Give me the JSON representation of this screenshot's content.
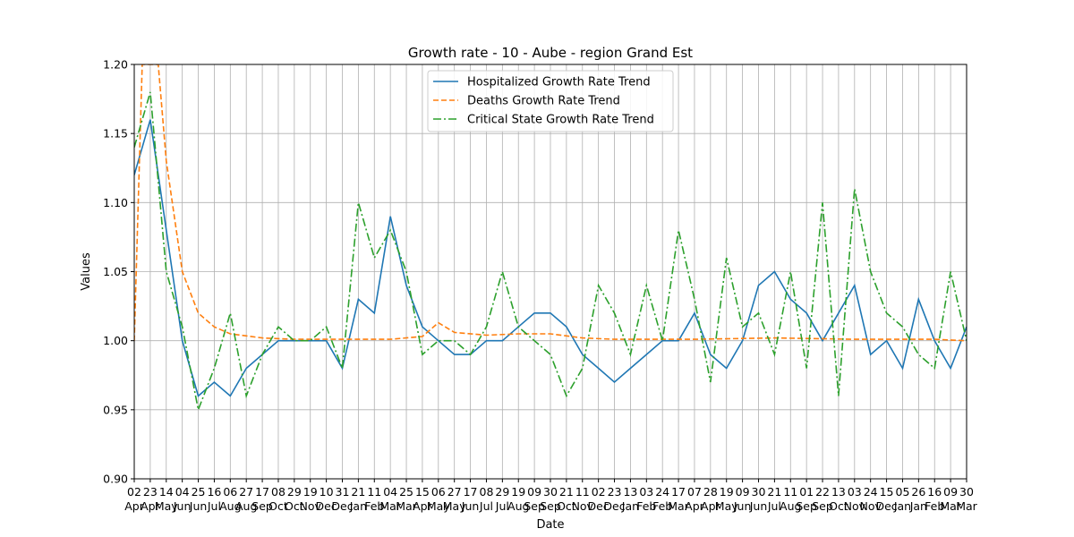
{
  "chart_data": {
    "type": "line",
    "title": "Growth rate - 10 - Aube - region Grand Est",
    "xlabel": "Date",
    "ylabel": "Values",
    "ylim": [
      0.9,
      1.2
    ],
    "yticks": [
      "0.90",
      "0.95",
      "1.00",
      "1.05",
      "1.10",
      "1.15",
      "1.20"
    ],
    "grid": true,
    "legend_position": "upper center",
    "x_tick_days": [
      "02",
      "23",
      "14",
      "04",
      "25",
      "16",
      "06",
      "27",
      "17",
      "08",
      "29",
      "19",
      "10",
      "31",
      "21",
      "11",
      "04",
      "25",
      "15",
      "06",
      "27",
      "17",
      "08",
      "29",
      "19",
      "09",
      "30",
      "21",
      "11",
      "02",
      "23",
      "13",
      "03",
      "24",
      "17",
      "07",
      "28",
      "19",
      "09",
      "30",
      "21",
      "11",
      "01",
      "22",
      "13",
      "03",
      "24",
      "15",
      "05",
      "26",
      "16",
      "09",
      "30"
    ],
    "x_tick_months": [
      "Apr",
      "Apr",
      "May",
      "Jun",
      "Jun",
      "Jul",
      "Aug",
      "Aug",
      "Sep",
      "Oct",
      "Oct",
      "Nov",
      "Dec",
      "Dec",
      "Jan",
      "Feb",
      "Mar",
      "Mar",
      "Apr",
      "May",
      "May",
      "Jun",
      "Jul",
      "Jul",
      "Aug",
      "Sep",
      "Sep",
      "Oct",
      "Nov",
      "Dec",
      "Dec",
      "Jan",
      "Feb",
      "Feb",
      "Mar",
      "Apr",
      "Apr",
      "May",
      "Jun",
      "Jun",
      "Jul",
      "Aug",
      "Sep",
      "Sep",
      "Oct",
      "Nov",
      "Nov",
      "Dec",
      "Jan",
      "Jan",
      "Feb",
      "Mar",
      "Mar"
    ],
    "series": [
      {
        "name": "Hospitalized Growth Rate Trend",
        "color": "#1f77b4",
        "style": "solid",
        "x": [
          0,
          1,
          2,
          3,
          4,
          5,
          6,
          7,
          8,
          9,
          10,
          11,
          12,
          13,
          14,
          15,
          16,
          17,
          18,
          19,
          20,
          21,
          22,
          23,
          24,
          25,
          26,
          27,
          28,
          29,
          30,
          31,
          32,
          33,
          34,
          35,
          36,
          37,
          38,
          39,
          40,
          41,
          42,
          43,
          44,
          45,
          46,
          47,
          48,
          49,
          50,
          51,
          52
        ],
        "values": [
          1.12,
          1.16,
          1.08,
          1.0,
          0.96,
          0.97,
          0.96,
          0.98,
          0.99,
          1.0,
          1.0,
          1.0,
          1.0,
          0.98,
          1.03,
          1.02,
          1.09,
          1.04,
          1.01,
          1.0,
          0.99,
          0.99,
          1.0,
          1.0,
          1.01,
          1.02,
          1.02,
          1.01,
          0.99,
          0.98,
          0.97,
          0.98,
          0.99,
          1.0,
          1.0,
          1.02,
          0.99,
          0.98,
          1.0,
          1.04,
          1.05,
          1.03,
          1.02,
          1.0,
          1.02,
          1.04,
          0.99,
          1.0,
          0.98,
          1.03,
          1.0,
          0.98,
          1.01
        ]
      },
      {
        "name": "Deaths Growth Rate Trend",
        "color": "#ff7f0e",
        "style": "dashed",
        "x": [
          0,
          0.5,
          1,
          1.5,
          2,
          3,
          4,
          5,
          6,
          8,
          10,
          12,
          14,
          16,
          18,
          19,
          20,
          22,
          24,
          26,
          28,
          30,
          35,
          40,
          45,
          50,
          52
        ],
        "values": [
          1.0,
          1.2,
          1.2,
          1.2,
          1.13,
          1.05,
          1.02,
          1.01,
          1.005,
          1.002,
          1.001,
          1.001,
          1.001,
          1.001,
          1.003,
          1.013,
          1.006,
          1.004,
          1.005,
          1.005,
          1.002,
          1.001,
          1.001,
          1.002,
          1.001,
          1.001,
          1.0
        ]
      },
      {
        "name": "Critical State Growth Rate Trend",
        "color": "#2ca02c",
        "style": "dashdot",
        "x": [
          0,
          1,
          2,
          3,
          4,
          5,
          6,
          7,
          8,
          9,
          10,
          11,
          12,
          13,
          14,
          15,
          16,
          17,
          18,
          19,
          20,
          21,
          22,
          23,
          24,
          25,
          26,
          27,
          28,
          29,
          30,
          31,
          32,
          33,
          34,
          35,
          36,
          37,
          38,
          39,
          40,
          41,
          42,
          43,
          44,
          45,
          46,
          47,
          48,
          49,
          50,
          51,
          52
        ],
        "values": [
          1.14,
          1.18,
          1.05,
          1.01,
          0.95,
          0.98,
          1.02,
          0.96,
          0.99,
          1.01,
          1.0,
          1.0,
          1.01,
          0.98,
          1.1,
          1.06,
          1.08,
          1.05,
          0.99,
          1.0,
          1.0,
          0.99,
          1.01,
          1.05,
          1.01,
          1.0,
          0.99,
          0.96,
          0.98,
          1.04,
          1.02,
          0.99,
          1.04,
          1.0,
          1.08,
          1.03,
          0.97,
          1.06,
          1.01,
          1.02,
          0.99,
          1.05,
          0.98,
          1.1,
          0.96,
          1.11,
          1.05,
          1.02,
          1.01,
          0.99,
          0.98,
          1.05,
          1.0
        ]
      }
    ]
  }
}
